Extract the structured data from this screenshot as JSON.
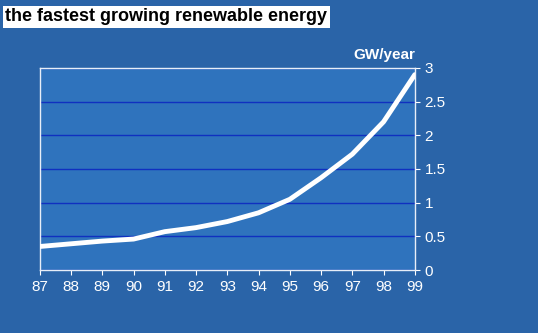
{
  "chart_data": {
    "type": "line",
    "title": "the fastest growing renewable energy",
    "y_label": "GW/year",
    "categories": [
      "87",
      "88",
      "89",
      "90",
      "91",
      "92",
      "93",
      "94",
      "95",
      "96",
      "97",
      "98",
      "99"
    ],
    "values": [
      0.35,
      0.39,
      0.43,
      0.46,
      0.57,
      0.63,
      0.72,
      0.85,
      1.05,
      1.37,
      1.72,
      2.2,
      2.9
    ],
    "color": "#ffffff",
    "ylim": [
      0,
      3
    ],
    "yticks": [
      0,
      0.5,
      1,
      1.5,
      2,
      2.5,
      3
    ],
    "grid": true
  }
}
